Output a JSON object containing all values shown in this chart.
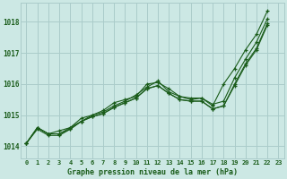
{
  "title": "Graphe pression niveau de la mer (hPa)",
  "background_color": "#cce8e4",
  "grid_color": "#aaccca",
  "line_color": "#1a5c1a",
  "text_color": "#1a5c1a",
  "xlim": [
    -0.5,
    23.5
  ],
  "ylim": [
    1013.6,
    1018.6
  ],
  "yticks": [
    1014,
    1015,
    1016,
    1017,
    1018
  ],
  "xticks": [
    0,
    1,
    2,
    3,
    4,
    5,
    6,
    7,
    8,
    9,
    10,
    11,
    12,
    13,
    14,
    15,
    16,
    17,
    18,
    19,
    20,
    21,
    22,
    23
  ],
  "series": [
    {
      "x": [
        0,
        1,
        2,
        3,
        4,
        5,
        6,
        7,
        8,
        9,
        10,
        11,
        12,
        13,
        14,
        15,
        16,
        17,
        18,
        19,
        20,
        21,
        22
      ],
      "y": [
        1014.1,
        1014.6,
        1014.4,
        1014.5,
        1014.6,
        1014.9,
        1015.0,
        1015.15,
        1015.4,
        1015.5,
        1015.6,
        1016.0,
        1016.05,
        1015.85,
        1015.6,
        1015.55,
        1015.55,
        1015.3,
        1016.0,
        1016.5,
        1017.1,
        1017.6,
        1018.35
      ]
    },
    {
      "x": [
        0,
        1,
        2,
        3,
        4,
        5,
        6,
        7,
        8,
        9,
        10,
        11,
        12,
        13,
        14,
        15,
        16,
        17,
        18,
        19,
        20,
        21,
        22
      ],
      "y": [
        1014.1,
        1014.6,
        1014.4,
        1014.4,
        1014.6,
        1014.8,
        1015.0,
        1015.1,
        1015.3,
        1015.45,
        1015.65,
        1015.9,
        1016.1,
        1015.75,
        1015.6,
        1015.5,
        1015.55,
        1015.35,
        1015.45,
        1016.2,
        1016.8,
        1017.35,
        1018.1
      ]
    },
    {
      "x": [
        0,
        1,
        2,
        3,
        4,
        5,
        6,
        7,
        8,
        9,
        10,
        11,
        12,
        13,
        14,
        15,
        16,
        17,
        18,
        19,
        20,
        21,
        22
      ],
      "y": [
        1014.1,
        1014.6,
        1014.4,
        1014.4,
        1014.55,
        1014.8,
        1014.95,
        1015.05,
        1015.25,
        1015.4,
        1015.55,
        1015.85,
        1015.95,
        1015.7,
        1015.5,
        1015.45,
        1015.45,
        1015.2,
        1015.3,
        1016.0,
        1016.65,
        1017.15,
        1017.95
      ]
    },
    {
      "x": [
        0,
        1,
        2,
        3,
        4,
        5,
        6,
        7,
        8,
        9,
        10,
        11,
        12,
        13,
        14,
        15,
        16,
        17,
        18,
        19,
        20,
        21,
        22
      ],
      "y": [
        1014.1,
        1014.55,
        1014.35,
        1014.35,
        1014.55,
        1014.8,
        1014.95,
        1015.05,
        1015.25,
        1015.4,
        1015.55,
        1015.85,
        1015.95,
        1015.7,
        1015.5,
        1015.45,
        1015.45,
        1015.2,
        1015.3,
        1015.95,
        1016.6,
        1017.1,
        1017.9
      ]
    }
  ]
}
